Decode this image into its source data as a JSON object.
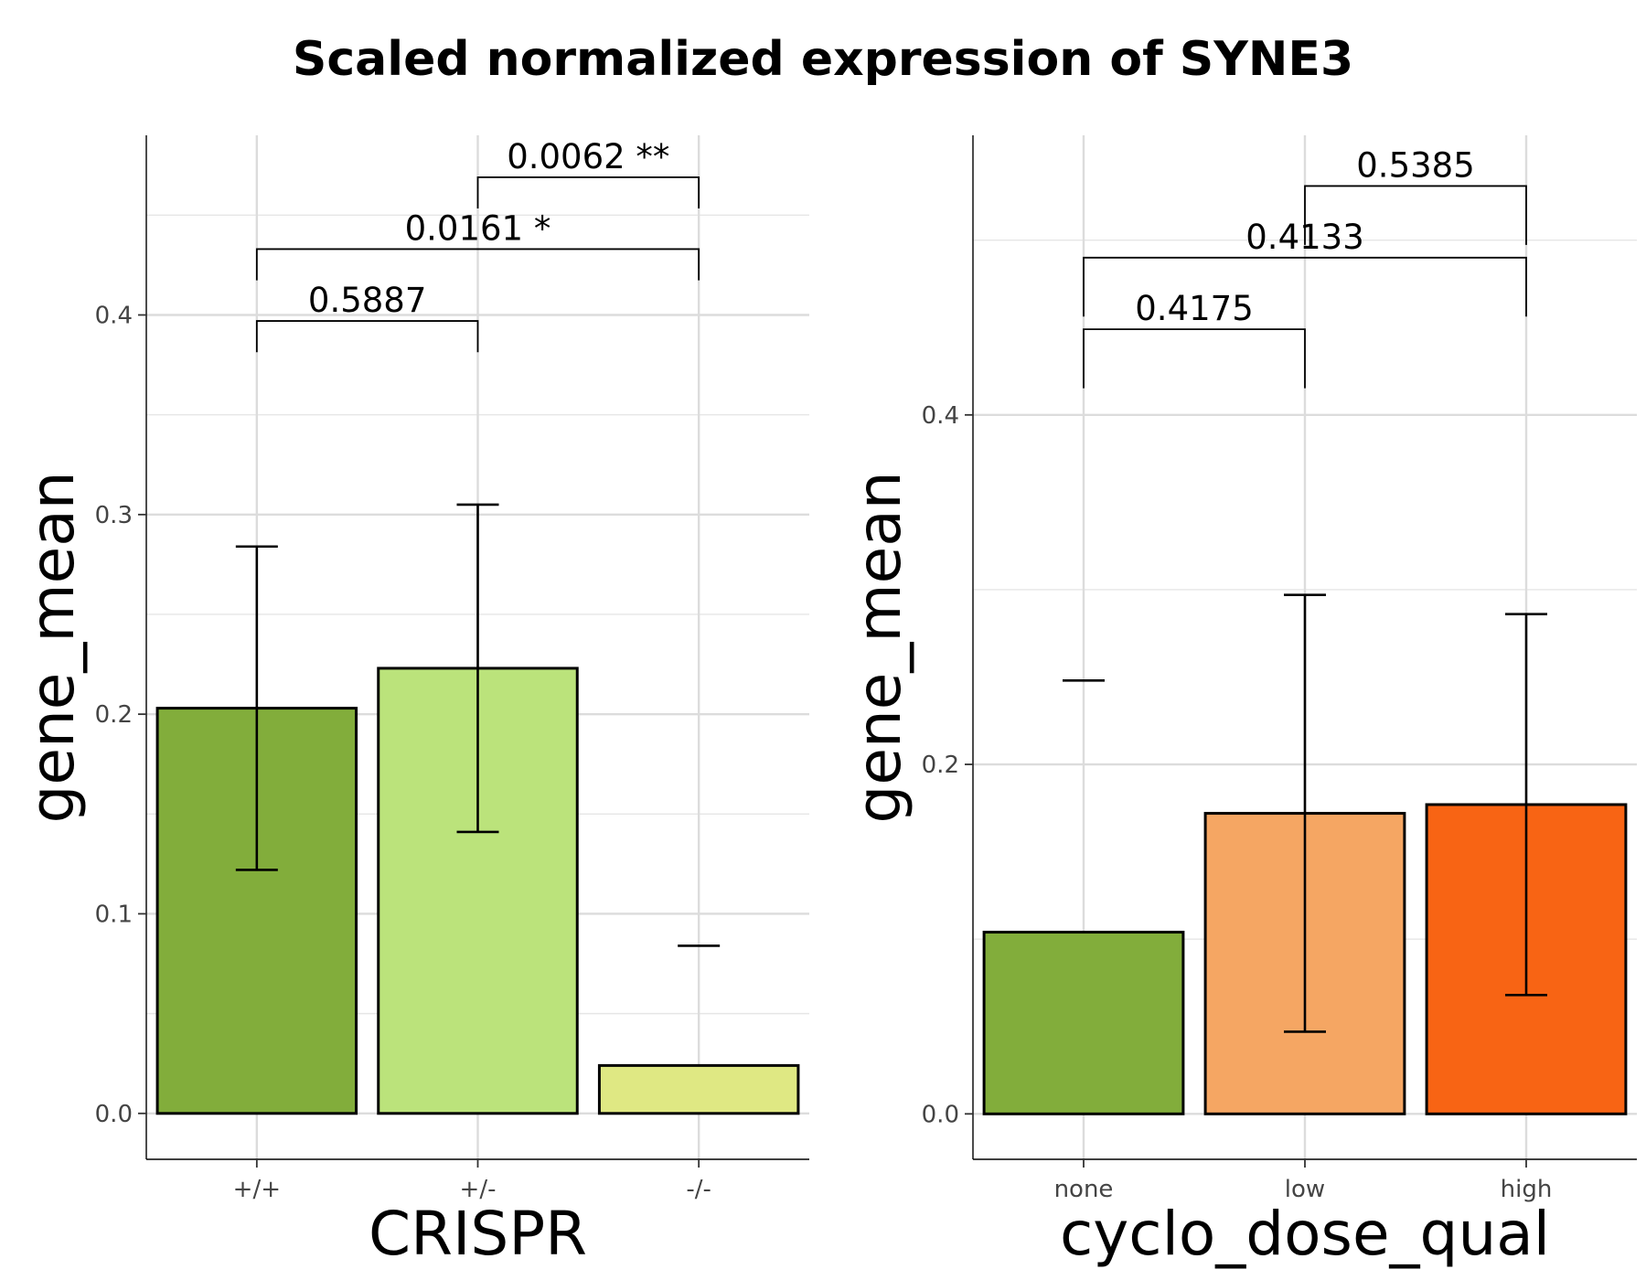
{
  "figure_title": "Scaled normalized expression of SYNE3",
  "chart_data": [
    {
      "type": "bar",
      "xlabel": "CRISPR",
      "ylabel": "gene_mean",
      "categories": [
        "+/+",
        "+/-",
        "-/-"
      ],
      "values": [
        0.203,
        0.223,
        0.024
      ],
      "error_low": [
        0.122,
        0.141,
        null
      ],
      "error_high": [
        0.284,
        0.305,
        0.084
      ],
      "colors": [
        "#82ad3b",
        "#bbe37b",
        "#dfe883"
      ],
      "ylim": [
        -0.023,
        0.49
      ],
      "yticks": [
        0.0,
        0.1,
        0.2,
        0.3,
        0.4
      ],
      "ytick_labels": [
        "0.0",
        "0.1",
        "0.2",
        "0.3",
        "0.4"
      ],
      "grid": true,
      "comparisons": [
        {
          "from": 0,
          "to": 1,
          "label": "0.5887",
          "y": 0.397,
          "leg": 0.396
        },
        {
          "from": 0,
          "to": 2,
          "label": "0.0161 *",
          "y": 0.433,
          "leg": 0.432
        },
        {
          "from": 1,
          "to": 2,
          "label": "0.0062 **",
          "y": 0.469,
          "leg": 0.468
        }
      ]
    },
    {
      "type": "bar",
      "xlabel": "cyclo_dose_qual",
      "ylabel": "gene_mean",
      "categories": [
        "none",
        "low",
        "high"
      ],
      "values": [
        0.104,
        0.172,
        0.177
      ],
      "error_low": [
        null,
        0.047,
        0.068
      ],
      "error_high": [
        0.248,
        0.297,
        0.286
      ],
      "colors": [
        "#82ad3b",
        "#f5a663",
        "#f86414"
      ],
      "ylim": [
        -0.026,
        0.56
      ],
      "yticks": [
        0.0,
        0.2,
        0.4
      ],
      "ytick_labels": [
        "0.0",
        "0.2",
        "0.4"
      ],
      "grid": true,
      "comparisons": [
        {
          "from": 0,
          "to": 1,
          "label": "0.4175",
          "y": 0.449,
          "leg": 0.432
        },
        {
          "from": 0,
          "to": 2,
          "label": "0.4133",
          "y": 0.49,
          "leg": 0.473
        },
        {
          "from": 1,
          "to": 2,
          "label": "0.5385",
          "y": 0.531,
          "leg": 0.514
        }
      ]
    }
  ]
}
